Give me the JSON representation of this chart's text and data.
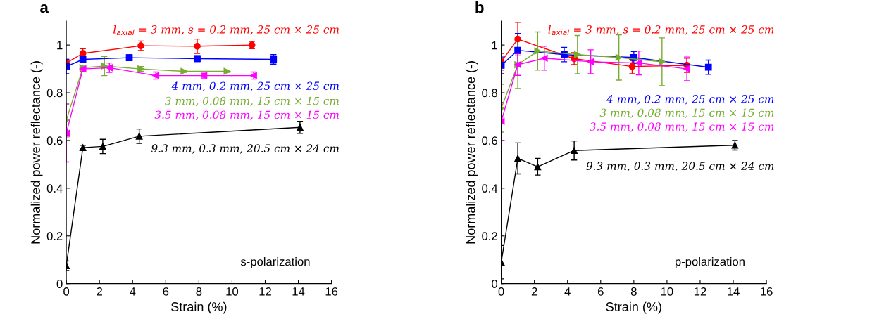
{
  "chart_data": [
    {
      "type": "line",
      "title": "a",
      "xlabel": "Strain (%)",
      "ylabel": "Normalized power reflectance (-)",
      "xlim": [
        0,
        16
      ],
      "xticks": [
        0,
        2,
        4,
        6,
        8,
        10,
        12,
        14,
        16
      ],
      "ylim": [
        0,
        1.1
      ],
      "yticks": [
        0,
        0.2,
        0.4,
        0.6,
        0.8,
        1
      ],
      "grid": false,
      "legend": false,
      "annotations": [
        "s-polarization"
      ],
      "series": [
        {
          "name": "l$_{axial}$ = 3 mm, s = 0.2 mm, 25 cm × 25 cm",
          "color": "#ff0000",
          "marker": "circle",
          "x": [
            0,
            1,
            4.5,
            7.9,
            11.2
          ],
          "values": [
            0.925,
            0.965,
            0.997,
            0.995,
            1.0
          ],
          "errors": [
            0.015,
            0.02,
            0.02,
            0.03,
            0.015
          ]
        },
        {
          "name": "4 mm, 0.2 mm, 25 cm × 25 cm",
          "color": "#0000ff",
          "marker": "square",
          "x": [
            0,
            1,
            3.8,
            7.9,
            12.5
          ],
          "values": [
            0.91,
            0.94,
            0.947,
            0.943,
            0.94
          ],
          "errors": [
            0.03,
            0.01,
            0.012,
            0.012,
            0.02
          ]
        },
        {
          "name": "3 mm, 0.08 mm, 15 cm × 15 cm",
          "color": "#77ac30",
          "marker": "triangle-right",
          "x": [
            0,
            1,
            2.3,
            4.5,
            7.1,
            9.7
          ],
          "values": [
            0.685,
            0.905,
            0.912,
            0.9,
            0.89,
            0.89
          ],
          "errors": [
            0.07,
            0.01,
            0.04,
            0.01,
            0.005,
            0.005
          ]
        },
        {
          "name": "3.5 mm, 0.08 mm, 15 cm × 15 cm",
          "color": "#ff00ff",
          "marker": "triangle-left",
          "x": [
            0,
            1,
            2.6,
            5.4,
            8.3,
            11.3
          ],
          "values": [
            0.63,
            0.9,
            0.905,
            0.872,
            0.872,
            0.872
          ],
          "errors": [
            0.12,
            0.01,
            0.02,
            0.015,
            0.01,
            0.015
          ]
        },
        {
          "name": "9.3 mm, 0.3 mm, 20.5 cm × 24 cm",
          "color": "#000000",
          "marker": "triangle",
          "x": [
            0,
            1,
            2.2,
            4.4,
            14.1
          ],
          "values": [
            0.075,
            0.57,
            0.575,
            0.618,
            0.655
          ],
          "errors": [
            0.02,
            0.01,
            0.03,
            0.03,
            0.025
          ]
        }
      ]
    },
    {
      "type": "line",
      "title": "b",
      "xlabel": "Strain (%)",
      "ylabel": "Normalized power reflectance (-)",
      "xlim": [
        0,
        16
      ],
      "xticks": [
        0,
        2,
        4,
        6,
        8,
        10,
        12,
        14,
        16
      ],
      "ylim": [
        0,
        1.1
      ],
      "yticks": [
        0,
        0.2,
        0.4,
        0.6,
        0.8,
        1
      ],
      "grid": false,
      "legend": false,
      "annotations": [
        "p-polarization"
      ],
      "series": [
        {
          "name": "l$_{axial}$ = 3 mm, s = 0.2 mm, 25 cm × 25 cm",
          "color": "#ff0000",
          "marker": "circle",
          "x": [
            0,
            1,
            4.4,
            7.9,
            11.2
          ],
          "values": [
            0.93,
            1.025,
            0.943,
            0.91,
            0.915
          ],
          "errors": [
            0.035,
            0.07,
            0.025,
            0.03,
            0.03
          ]
        },
        {
          "name": "4 mm, 0.2 mm, 25 cm × 25 cm",
          "color": "#0000ff",
          "marker": "square",
          "x": [
            0,
            1,
            3.8,
            8.0,
            12.5
          ],
          "values": [
            0.915,
            0.978,
            0.96,
            0.948,
            0.907
          ],
          "errors": [
            0.035,
            0.07,
            0.03,
            0.025,
            0.03
          ]
        },
        {
          "name": "3 mm, 0.08 mm, 15 cm × 15 cm",
          "color": "#77ac30",
          "marker": "triangle-right",
          "x": [
            0,
            1,
            2.2,
            4.6,
            7.1,
            9.7
          ],
          "values": [
            0.735,
            0.918,
            0.975,
            0.96,
            0.948,
            0.93
          ],
          "errors": [
            0.1,
            0.1,
            0.08,
            0.08,
            0.095,
            0.1
          ]
        },
        {
          "name": "3.5 mm, 0.08 mm, 15 cm × 15 cm",
          "color": "#ff00ff",
          "marker": "triangle-left",
          "x": [
            0,
            1,
            2.6,
            5.4,
            8.3,
            11.2
          ],
          "values": [
            0.68,
            0.918,
            0.945,
            0.93,
            0.925,
            0.9
          ],
          "errors": [
            0.08,
            0.045,
            0.05,
            0.05,
            0.05,
            0.05
          ]
        },
        {
          "name": "9.3 mm, 0.3 mm, 20.5 cm × 24 cm",
          "color": "#000000",
          "marker": "triangle",
          "x": [
            0,
            1,
            2.2,
            4.4,
            14.1
          ],
          "values": [
            0.09,
            0.525,
            0.49,
            0.558,
            0.58
          ],
          "errors": [
            0.07,
            0.065,
            0.035,
            0.04,
            0.02
          ]
        }
      ]
    }
  ]
}
